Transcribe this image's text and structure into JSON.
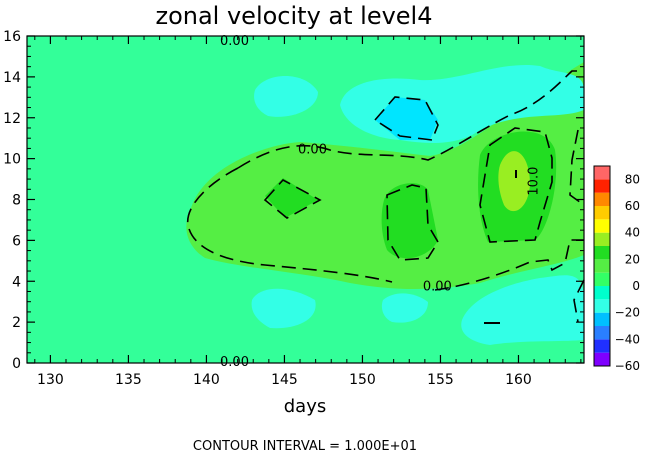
{
  "chart_data": {
    "type": "heatmap",
    "title": "zonal velocity at level4",
    "xlabel": "days",
    "ylabel": "",
    "xlim": [
      128.5,
      164.2
    ],
    "ylim": [
      0,
      16
    ],
    "x_ticks": [
      "130",
      "135",
      "140",
      "145",
      "150",
      "155",
      "160"
    ],
    "y_ticks": [
      "0",
      "2",
      "4",
      "6",
      "8",
      "10",
      "12",
      "14",
      "16"
    ],
    "footer": "CONTOUR INTERVAL = 1.000E+01",
    "contour_labels": [
      {
        "text": "0.00",
        "x": 141.8,
        "y": 15.8
      },
      {
        "text": "0.00",
        "x": 146.8,
        "y": 10.5
      },
      {
        "text": "0.00",
        "x": 154.8,
        "y": 3.8
      },
      {
        "text": "10.0",
        "x": 160.9,
        "y": 8.9
      },
      {
        "text": "0.00",
        "x": 141.8,
        "y": 0.1
      }
    ],
    "colorbar": {
      "ticks": [
        "80",
        "60",
        "40",
        "20",
        "0",
        "−20",
        "−40",
        "−60"
      ],
      "range": [
        -60,
        90
      ],
      "colors": [
        "#7f00ff",
        "#2030ff",
        "#2a7fff",
        "#00c0ff",
        "#33ffe6",
        "#00ffcc",
        "#33ff66",
        "#55ee44",
        "#22dd22",
        "#99ee22",
        "#ffff00",
        "#ffcc00",
        "#ff8800",
        "#ff2200",
        "#ff6666"
      ]
    },
    "regions": [
      {
        "level": 0,
        "color": "#33ff99",
        "desc": "background near-zero"
      },
      {
        "level": 5,
        "color": "#55ee44",
        "desc": "positive band y 4-10"
      },
      {
        "level": 10,
        "color": "#22dd22",
        "desc": "core near day 145, 153, 160"
      },
      {
        "level": -5,
        "color": "#33ffe6",
        "desc": "negative near y 12 and y 2"
      },
      {
        "level": -10,
        "color": "#00e5ff",
        "desc": "core near day 153 y 12"
      }
    ]
  }
}
